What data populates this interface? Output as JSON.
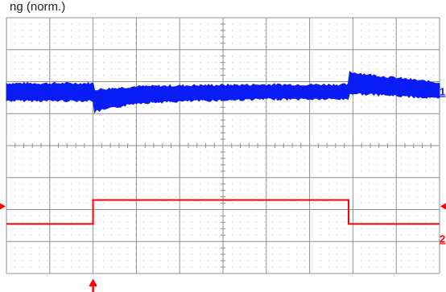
{
  "title": "ng (norm.)",
  "colors": {
    "channel_1": "#0a1cf5",
    "channel_2": "#ff0000",
    "trigger": "#ff0000",
    "grid": "#8f8f8f",
    "background": "#ffffff"
  },
  "chart_data": {
    "type": "line",
    "grid": {
      "horizontal_divisions": 10,
      "vertical_divisions": 8,
      "minor_ticks_on_center_axes": true,
      "dotted_subdivisions": true
    },
    "x_range": [
      0,
      10
    ],
    "y_range": [
      -4,
      4
    ],
    "series": [
      {
        "channel_label": "1",
        "color": "#0a1cf5",
        "style": "noisy-band",
        "envelope": [
          {
            "x": 0.0,
            "upper": 1.9,
            "lower": 1.45
          },
          {
            "x": 2.0,
            "upper": 1.9,
            "lower": 1.45
          },
          {
            "x": 2.02,
            "upper": 1.7,
            "lower": 1.1
          },
          {
            "x": 3.0,
            "upper": 1.8,
            "lower": 1.38
          },
          {
            "x": 4.5,
            "upper": 1.84,
            "lower": 1.45
          },
          {
            "x": 6.0,
            "upper": 1.86,
            "lower": 1.5
          },
          {
            "x": 7.9,
            "upper": 1.86,
            "lower": 1.5
          },
          {
            "x": 7.92,
            "upper": 2.25,
            "lower": 1.68
          },
          {
            "x": 8.8,
            "upper": 2.1,
            "lower": 1.62
          },
          {
            "x": 10.0,
            "upper": 1.92,
            "lower": 1.52
          }
        ]
      },
      {
        "channel_label": "2",
        "color": "#ff0000",
        "style": "step",
        "points": [
          {
            "x": 0.0,
            "y": -2.45
          },
          {
            "x": 2.0,
            "y": -2.45
          },
          {
            "x": 2.0,
            "y": -1.7
          },
          {
            "x": 7.9,
            "y": -1.7
          },
          {
            "x": 7.9,
            "y": -2.45
          },
          {
            "x": 10.0,
            "y": -2.45
          }
        ]
      }
    ],
    "markers": {
      "trigger_time": 2.0,
      "channel_1_label": "1",
      "channel_1_y": 1.65,
      "channel_2_label": "2",
      "channel_2_y": -2.95,
      "level_marker_y": -1.9
    }
  }
}
